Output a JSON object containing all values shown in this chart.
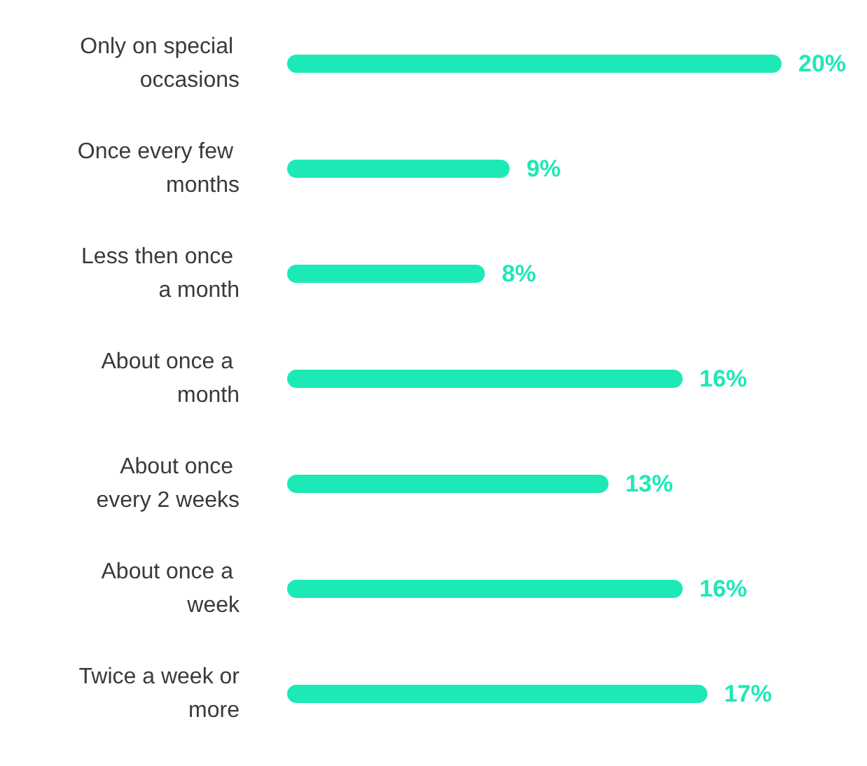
{
  "chart_data": {
    "type": "bar",
    "orientation": "horizontal",
    "categories": [
      "Only on special occasions",
      "Once every few months",
      "Less then once a month",
      "About once a month",
      "About once every 2 weeks",
      "About once a week",
      "Twice a week or more"
    ],
    "values": [
      20,
      9,
      8,
      16,
      13,
      16,
      17
    ],
    "value_labels": [
      "20%",
      "9%",
      "8%",
      "16%",
      "13%",
      "16%",
      "17%"
    ],
    "color": "#1de9b6"
  }
}
